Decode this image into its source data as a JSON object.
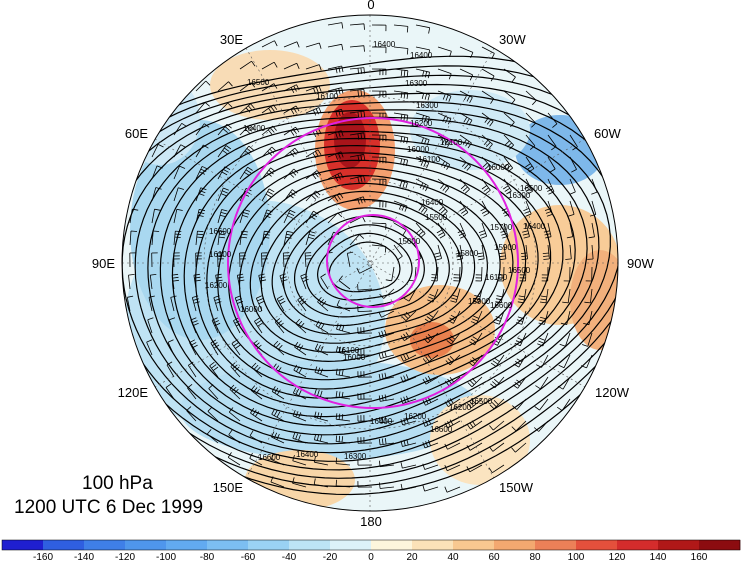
{
  "map": {
    "projection": "north polar stereographic",
    "longitude_labels": [
      "0",
      "30W",
      "60W",
      "90W",
      "120W",
      "150W",
      "180",
      "150E",
      "120E",
      "90E",
      "60E",
      "30E"
    ],
    "contour_labels": [
      "16400",
      "16400",
      "16300",
      "16500",
      "16400",
      "16100",
      "16000",
      "16100",
      "16300",
      "16400",
      "16500",
      "16600",
      "16100",
      "16200",
      "16400",
      "16600",
      "16400",
      "16300",
      "16500",
      "16600",
      "16500",
      "16000",
      "15900",
      "16100",
      "16200",
      "15600",
      "16400",
      "16300",
      "16600",
      "16200",
      "16100",
      "16000",
      "15900",
      "15800",
      "15700",
      "15500",
      "16000",
      "16100",
      "16200"
    ],
    "reference_circles_color": "#e020e0",
    "contour_color": "#000000"
  },
  "caption": {
    "level": "100 hPa",
    "time": "1200 UTC 6 Dec 1999"
  },
  "colorbar": {
    "tick_labels": [
      "-160",
      "-140",
      "-120",
      "-100",
      "-80",
      "-60",
      "-40",
      "-20",
      "0",
      "20",
      "40",
      "60",
      "80",
      "100",
      "120",
      "140",
      "160"
    ],
    "colors": [
      "#1f1fd0",
      "#2f5fe0",
      "#3f7fe8",
      "#4f96ec",
      "#62aaf0",
      "#7cbef2",
      "#9ad2f4",
      "#bce4f6",
      "#dcf2f8",
      "#fdf6dc",
      "#fbe2b8",
      "#f8c890",
      "#f3a870",
      "#ec8058",
      "#e4503c",
      "#d42c2c",
      "#b01818",
      "#8c0c10"
    ]
  }
}
